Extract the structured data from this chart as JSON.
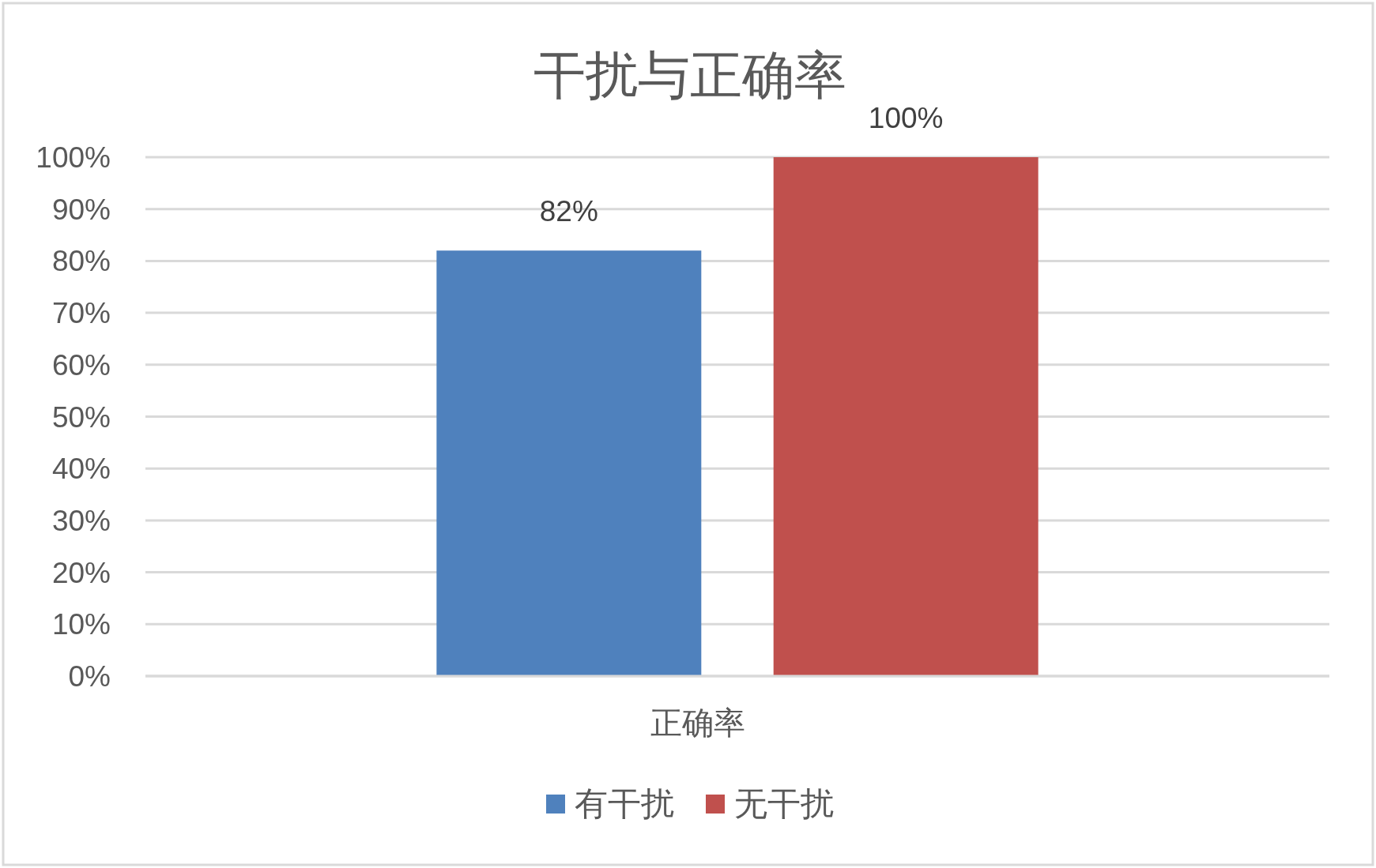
{
  "chart_data": {
    "type": "bar",
    "title": "干扰与正确率",
    "categories": [
      "正确率"
    ],
    "series": [
      {
        "name": "有干扰",
        "color": "#4f81bd",
        "values": [
          82
        ],
        "value_labels": [
          "82%"
        ]
      },
      {
        "name": "无干扰",
        "color": "#c0504d",
        "values": [
          100
        ],
        "value_labels": [
          "100%"
        ]
      }
    ],
    "ylim": [
      0,
      100
    ],
    "yticks": [
      {
        "value": 0,
        "label": "0%"
      },
      {
        "value": 10,
        "label": "10%"
      },
      {
        "value": 20,
        "label": "20%"
      },
      {
        "value": 30,
        "label": "30%"
      },
      {
        "value": 40,
        "label": "40%"
      },
      {
        "value": 50,
        "label": "50%"
      },
      {
        "value": 60,
        "label": "60%"
      },
      {
        "value": 70,
        "label": "70%"
      },
      {
        "value": 80,
        "label": "80%"
      },
      {
        "value": 90,
        "label": "90%"
      },
      {
        "value": 100,
        "label": "100%"
      }
    ],
    "grid": "y",
    "legend": "bottom"
  }
}
